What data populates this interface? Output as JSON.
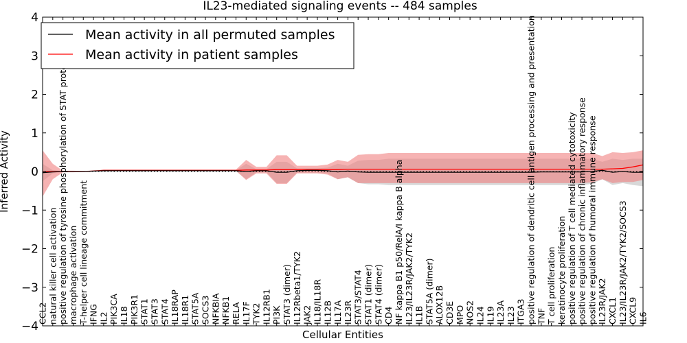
{
  "chart_data": {
    "type": "line",
    "title": "IL23-mediated signaling events -- 484 samples",
    "xlabel": "Cellular Entities",
    "ylabel": "Inferred Activity",
    "ylim": [
      -4,
      4
    ],
    "yticks": [
      -4,
      -3,
      -2,
      -1,
      0,
      1,
      2,
      3,
      4
    ],
    "yticklabels": [
      "−4",
      "−3",
      "−2",
      "−1",
      "0",
      "1",
      "2",
      "3",
      "4"
    ],
    "grid": false,
    "legend_position": "top-left",
    "categories": [
      "CCL2",
      "natural killer cell activation",
      "positive regulation of tyrosine phosphorylation of STAT protein",
      "macrophage activation",
      "T-helper cell lineage commitment",
      "IFNG",
      "IL2",
      "PIK3CA",
      "IL18",
      "PIK3R1",
      "STAT1",
      "STAT3",
      "STAT4",
      "IL18RAP",
      "IL18R1",
      "STAT5A",
      "SOCS3",
      "NFKBIA",
      "NFKB1",
      "RELA",
      "IL17F",
      "TYK2",
      "IL12RB1",
      "PI3K",
      "STAT3 (dimer)",
      "IL12Rbeta1/TYK2",
      "JAK2",
      "IL18/IL18R",
      "IL12B",
      "IL17A",
      "IL23R",
      "STAT3/STAT4",
      "STAT1 (dimer)",
      "STAT4 (dimer)",
      "CD4",
      "NF kappa B1 p50/RelA/I kappa B alpha",
      "IL23/IL23R/JAK2/TYK2",
      "IL1B",
      "STAT5A (dimer)",
      "ALOX12B",
      "CD3E",
      "MPO",
      "NOS2",
      "IL24",
      "IL19",
      "IL23A",
      "IL23",
      "ITGA3",
      "positive regulation of dendritic cell antigen processing and presentation",
      "TNF",
      "T cell proliferation",
      "keratinocyte proliferation",
      "positive regulation of T cell mediated cytotoxicity",
      "positive regulation of chronic inflammatory response",
      "positive regulation of humoral immune response",
      "IL23R/JAK2",
      "CXCL1",
      "IL23/IL23R/JAK2/TYK2/SOCS3",
      "CXCL9",
      "IL6"
    ],
    "series": [
      {
        "name": "Mean activity in all permuted samples",
        "color": "#000000",
        "band_color": "#c8c8c8",
        "values": [
          -0.03,
          -0.01,
          0,
          0,
          0,
          0.01,
          0.02,
          0.02,
          0.02,
          0.02,
          0.02,
          0.02,
          0.02,
          0.02,
          0.02,
          0.02,
          0.02,
          0.02,
          0.02,
          0.02,
          0.0,
          0.02,
          0.02,
          -0.02,
          -0.02,
          0.02,
          0.03,
          0.03,
          0.02,
          -0.01,
          0.01,
          -0.01,
          -0.02,
          -0.02,
          -0.02,
          -0.02,
          -0.02,
          -0.02,
          -0.02,
          -0.02,
          -0.02,
          -0.02,
          -0.02,
          -0.02,
          -0.02,
          -0.02,
          -0.02,
          -0.02,
          -0.02,
          -0.01,
          -0.01,
          -0.01,
          -0.01,
          -0.01,
          0.0,
          0.03,
          -0.02,
          0.0,
          -0.02,
          -0.02
        ],
        "lower": [
          -0.25,
          -0.05,
          -0.01,
          -0.01,
          -0.01,
          0.0,
          0.0,
          0.01,
          0.01,
          0.01,
          0.01,
          0.01,
          0.01,
          0.01,
          0.01,
          0.01,
          0.01,
          0.01,
          0.01,
          0.01,
          -0.2,
          -0.02,
          -0.02,
          -0.3,
          -0.3,
          -0.03,
          -0.03,
          -0.03,
          -0.05,
          -0.2,
          -0.15,
          -0.3,
          -0.33,
          -0.33,
          -0.35,
          -0.35,
          -0.35,
          -0.35,
          -0.35,
          -0.35,
          -0.35,
          -0.35,
          -0.35,
          -0.35,
          -0.35,
          -0.35,
          -0.35,
          -0.35,
          -0.35,
          -0.35,
          -0.35,
          -0.35,
          -0.35,
          -0.35,
          -0.32,
          -0.2,
          -0.35,
          -0.3,
          -0.35,
          -0.38
        ],
        "upper": [
          0.2,
          0.03,
          0.01,
          0.01,
          0.01,
          0.02,
          0.03,
          0.03,
          0.03,
          0.03,
          0.03,
          0.03,
          0.03,
          0.03,
          0.03,
          0.03,
          0.03,
          0.03,
          0.03,
          0.03,
          0.2,
          0.06,
          0.06,
          0.25,
          0.25,
          0.08,
          0.08,
          0.08,
          0.1,
          0.2,
          0.15,
          0.28,
          0.3,
          0.3,
          0.33,
          0.33,
          0.33,
          0.33,
          0.33,
          0.33,
          0.33,
          0.33,
          0.33,
          0.33,
          0.33,
          0.33,
          0.33,
          0.33,
          0.33,
          0.33,
          0.33,
          0.33,
          0.33,
          0.33,
          0.33,
          0.25,
          0.33,
          0.3,
          0.33,
          0.33
        ]
      },
      {
        "name": "Mean activity in patient samples",
        "color": "#ff0000",
        "band_color": "#f08080",
        "values": [
          0.0,
          0.0,
          0.0,
          0.0,
          0.0,
          0.01,
          0.03,
          0.03,
          0.03,
          0.03,
          0.03,
          0.03,
          0.03,
          0.03,
          0.03,
          0.03,
          0.03,
          0.03,
          0.03,
          0.03,
          0.04,
          0.04,
          0.04,
          0.05,
          0.05,
          0.05,
          0.05,
          0.05,
          0.05,
          0.05,
          0.06,
          0.06,
          0.06,
          0.06,
          0.06,
          0.06,
          0.06,
          0.06,
          0.06,
          0.06,
          0.06,
          0.06,
          0.06,
          0.06,
          0.06,
          0.06,
          0.06,
          0.06,
          0.06,
          0.06,
          0.06,
          0.06,
          0.06,
          0.06,
          0.06,
          0.06,
          0.07,
          0.08,
          0.12,
          0.17
        ],
        "lower": [
          -0.65,
          -0.2,
          -0.02,
          -0.02,
          -0.01,
          0.0,
          0.01,
          0.02,
          0.02,
          0.02,
          0.02,
          0.02,
          0.02,
          0.02,
          0.02,
          0.02,
          0.02,
          0.02,
          0.02,
          0.02,
          -0.22,
          -0.05,
          -0.05,
          -0.32,
          -0.32,
          -0.05,
          -0.05,
          -0.05,
          -0.08,
          -0.2,
          -0.15,
          -0.3,
          -0.3,
          -0.3,
          -0.3,
          -0.3,
          -0.3,
          -0.3,
          -0.3,
          -0.3,
          -0.3,
          -0.3,
          -0.3,
          -0.3,
          -0.3,
          -0.3,
          -0.3,
          -0.3,
          -0.3,
          -0.3,
          -0.3,
          -0.3,
          -0.3,
          -0.3,
          -0.28,
          -0.2,
          -0.3,
          -0.27,
          -0.27,
          -0.22
        ],
        "upper": [
          0.55,
          0.2,
          0.02,
          0.02,
          0.01,
          0.03,
          0.05,
          0.05,
          0.05,
          0.05,
          0.05,
          0.05,
          0.05,
          0.05,
          0.05,
          0.05,
          0.05,
          0.05,
          0.05,
          0.05,
          0.3,
          0.12,
          0.12,
          0.42,
          0.42,
          0.15,
          0.15,
          0.15,
          0.18,
          0.3,
          0.25,
          0.43,
          0.45,
          0.45,
          0.48,
          0.48,
          0.48,
          0.48,
          0.48,
          0.48,
          0.48,
          0.48,
          0.48,
          0.48,
          0.48,
          0.48,
          0.48,
          0.48,
          0.48,
          0.48,
          0.48,
          0.48,
          0.48,
          0.48,
          0.48,
          0.4,
          0.5,
          0.48,
          0.5,
          0.55
        ]
      }
    ]
  }
}
